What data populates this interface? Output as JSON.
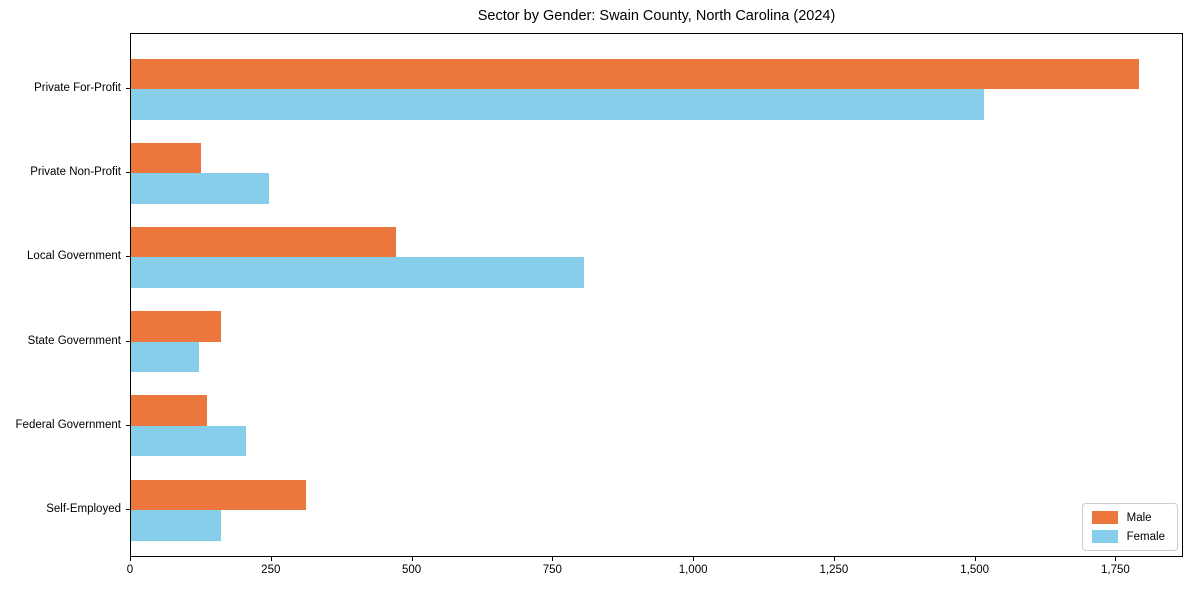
{
  "title": "Sector by Gender: Swain County, North Carolina (2024)",
  "chart_data": {
    "type": "bar",
    "orientation": "horizontal",
    "title": "Sector by Gender: Swain County, North Carolina (2024)",
    "categories": [
      "Private For-Profit",
      "Private Non-Profit",
      "Local Government",
      "State Government",
      "Federal Government",
      "Self-Employed"
    ],
    "series": [
      {
        "name": "Male",
        "color": "#EC773C",
        "values": [
          1790,
          125,
          470,
          160,
          135,
          310
        ]
      },
      {
        "name": "Female",
        "color": "#87CEEB",
        "values": [
          1515,
          245,
          805,
          120,
          205,
          160
        ]
      }
    ],
    "xlabel": "",
    "ylabel": "",
    "xlim": [
      0,
      1870
    ],
    "xticks": [
      0,
      250,
      500,
      750,
      1000,
      1250,
      1500,
      1750
    ],
    "xtick_labels": [
      "0",
      "250",
      "500",
      "750",
      "1,000",
      "1,250",
      "1,500",
      "1,750"
    ],
    "grid": false,
    "legend_position": "lower right"
  },
  "legend": {
    "items": [
      {
        "label": "Male",
        "color": "#EC773C"
      },
      {
        "label": "Female",
        "color": "#87CEEB"
      }
    ]
  }
}
